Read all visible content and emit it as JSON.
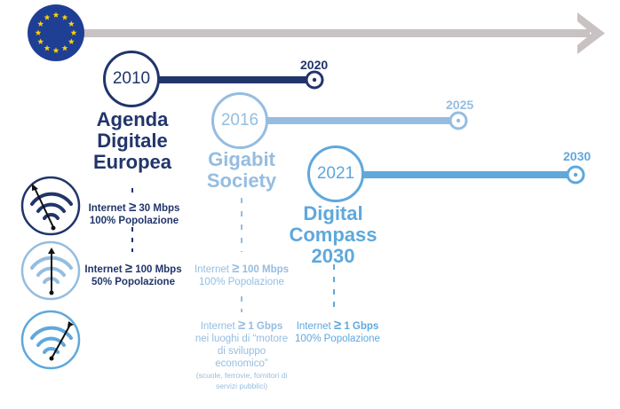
{
  "colors": {
    "dark": "#21356b",
    "medium": "#95bde0",
    "light": "#5fa8dc",
    "arrow": "#c9c2c2",
    "eu_blue": "#1f3f95",
    "eu_star": "#ffd400"
  },
  "icons": {
    "eu_flag": "eu-flag-icon",
    "wifi_30": "wifi-gauge-low-icon",
    "wifi_100": "wifi-gauge-mid-icon",
    "wifi_1g": "wifi-gauge-high-icon"
  },
  "initiatives": [
    {
      "start": "2010",
      "end": "2020",
      "title": [
        "Agenda",
        "Digitale",
        "Europea"
      ],
      "targets": [
        {
          "prefix": "Internet",
          "symbol": "≥",
          "value": "30 Mbps",
          "population": "100% Popolazione"
        },
        {
          "prefix": "Internet",
          "symbol": "≥",
          "value": "100 Mbps",
          "population": "50% Popolazione"
        }
      ]
    },
    {
      "start": "2016",
      "end": "2025",
      "title": [
        "Gigabit",
        "Society"
      ],
      "targets": [
        {
          "prefix": "Internet",
          "symbol": "≥",
          "value": "100 Mbps",
          "population": "100% Popolazione"
        },
        {
          "prefix": "Internet",
          "symbol": "≥",
          "value": "1 Gbps",
          "lines": [
            "nei luoghi di “motore",
            "di sviluppo",
            "economico”"
          ],
          "note": [
            "(scuole, ferrovie, fornitori di",
            "servizi pubblici)"
          ]
        }
      ]
    },
    {
      "start": "2021",
      "end": "2030",
      "title": [
        "Digital",
        "Compass",
        "2030"
      ],
      "targets": [
        {
          "prefix": "Internet",
          "symbol": "≥",
          "value": "1 Gbps",
          "population": "100% Popolazione"
        }
      ]
    }
  ]
}
